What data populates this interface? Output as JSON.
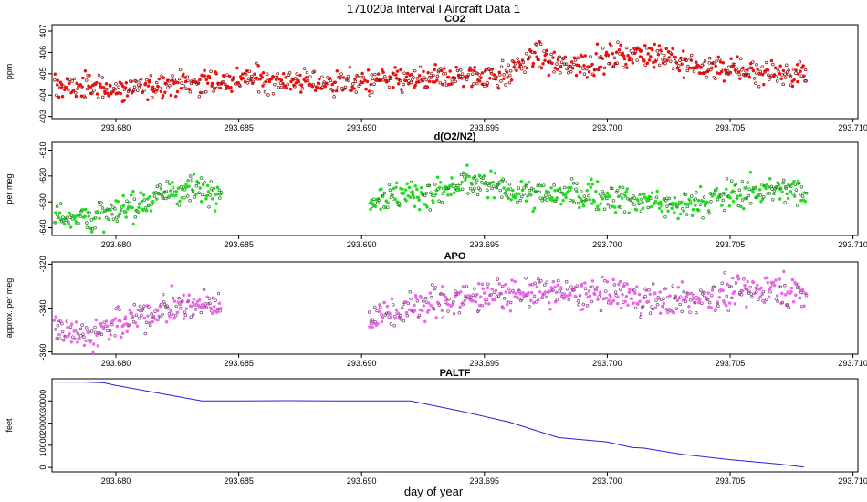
{
  "figure": {
    "title": "171020a   Interval I Aircraft Data 1",
    "xlabel": "day of year",
    "colors": {
      "axis": "#000000",
      "background": "#ffffff"
    }
  },
  "chart_data": [
    {
      "type": "scatter",
      "title": "CO2",
      "ylabel": "ppm",
      "xlim": [
        293.6774,
        293.7102
      ],
      "ylim": [
        402.9,
        407.3
      ],
      "x_ticks": [
        293.68,
        293.685,
        293.69,
        293.695,
        293.7,
        293.705,
        293.71
      ],
      "x_tick_labels": [
        "293.680",
        "293.685",
        "293.690",
        "293.695",
        "293.700",
        "293.705",
        "293.710"
      ],
      "y_ticks": [
        403,
        404,
        405,
        406,
        407
      ],
      "y_tick_labels": [
        "403",
        "404",
        "405",
        "406",
        "407"
      ],
      "series": [
        {
          "name": "CO2",
          "color": "#ee1111",
          "x_start": 293.6775,
          "x_end": 293.7081,
          "trend_x": [
            293.6775,
            293.6795,
            293.68,
            293.6825,
            293.6845,
            293.6855,
            293.688,
            293.69,
            293.692,
            293.6945,
            293.696,
            293.697,
            293.698,
            293.6995,
            293.7005,
            293.7025,
            293.703,
            293.705,
            293.7081
          ],
          "trend_y": [
            404.4,
            404.4,
            404.2,
            404.6,
            404.6,
            404.8,
            404.6,
            404.6,
            404.7,
            404.9,
            405.0,
            405.9,
            405.4,
            405.5,
            405.9,
            405.9,
            405.4,
            405.2,
            405.0
          ],
          "noise": 0.42,
          "gaps": []
        }
      ]
    },
    {
      "type": "scatter",
      "title": "d(O2/N2)",
      "ylabel": "per meg",
      "xlim": [
        293.6774,
        293.7102
      ],
      "ylim": [
        -643,
        -607
      ],
      "x_ticks": [
        293.68,
        293.685,
        293.69,
        293.695,
        293.7,
        293.705,
        293.71
      ],
      "x_tick_labels": [
        "293.680",
        "293.685",
        "293.690",
        "293.695",
        "293.700",
        "293.705",
        "293.710"
      ],
      "y_ticks": [
        -640,
        -630,
        -620,
        -610
      ],
      "y_tick_labels": [
        "-640",
        "-630",
        "-620",
        "-610"
      ],
      "series": [
        {
          "name": "d(O2/N2)",
          "color": "#22dd22",
          "x_start": 293.6775,
          "x_end": 293.7081,
          "trend_x": [
            293.6775,
            293.679,
            293.6805,
            293.682,
            293.6842,
            293.6904,
            293.693,
            293.6945,
            293.697,
            293.7,
            293.7015,
            293.703,
            293.705,
            293.707,
            293.7081
          ],
          "trend_y": [
            -635,
            -636,
            -633,
            -626,
            -625,
            -628,
            -627,
            -622,
            -627,
            -628,
            -630,
            -632,
            -627,
            -625,
            -626
          ],
          "noise": 4,
          "gaps": [
            [
              293.6843,
              293.6903
            ]
          ]
        }
      ]
    },
    {
      "type": "scatter",
      "title": "APO",
      "ylabel": "approx. per meg",
      "xlim": [
        293.6774,
        293.7102
      ],
      "ylim": [
        -361,
        -319
      ],
      "x_ticks": [
        293.68,
        293.685,
        293.69,
        293.695,
        293.7,
        293.705,
        293.71
      ],
      "x_tick_labels": [
        "293.680",
        "293.685",
        "293.690",
        "293.695",
        "293.700",
        "293.705",
        "293.710"
      ],
      "y_ticks": [
        -360,
        -340,
        -320
      ],
      "y_tick_labels": [
        "-360",
        "-340",
        "-320"
      ],
      "series": [
        {
          "name": "APO",
          "color": "#ee66ee",
          "x_start": 293.6775,
          "x_end": 293.7081,
          "trend_x": [
            293.6775,
            293.679,
            293.6805,
            293.682,
            293.6842,
            293.6904,
            293.6935,
            293.697,
            293.7,
            293.703,
            293.705,
            293.707,
            293.7081
          ],
          "trend_y": [
            -348,
            -352,
            -346,
            -340,
            -338,
            -344,
            -336,
            -333,
            -334,
            -337,
            -333,
            -330,
            -335
          ],
          "noise": 5,
          "gaps": [
            [
              293.6843,
              293.6903
            ]
          ]
        }
      ]
    },
    {
      "type": "line",
      "title": "PALTF",
      "ylabel": "feet",
      "xlim": [
        293.6774,
        293.7102
      ],
      "ylim": [
        -2000,
        40000
      ],
      "x_ticks": [
        293.68,
        293.685,
        293.69,
        293.695,
        293.7,
        293.705,
        293.71
      ],
      "x_tick_labels": [
        "293.680",
        "293.685",
        "293.690",
        "293.695",
        "293.700",
        "293.705",
        "293.710"
      ],
      "y_ticks": [
        0,
        10000,
        20000,
        30000
      ],
      "y_tick_labels": [
        "0",
        "10000",
        "20000",
        "30000"
      ],
      "series": [
        {
          "name": "PALTF",
          "color": "#2222dd",
          "x": [
            293.6775,
            293.6787,
            293.6795,
            293.68,
            293.681,
            293.682,
            293.6835,
            293.685,
            293.687,
            293.689,
            293.692,
            293.694,
            293.696,
            293.698,
            293.7,
            293.701,
            293.7015,
            293.703,
            293.705,
            293.707,
            293.708
          ],
          "y": [
            38500,
            38500,
            38200,
            37000,
            35000,
            33000,
            30000,
            30000,
            30100,
            30000,
            30000,
            25500,
            20500,
            13500,
            11500,
            9000,
            8700,
            6000,
            3500,
            1500,
            200
          ]
        }
      ]
    }
  ]
}
